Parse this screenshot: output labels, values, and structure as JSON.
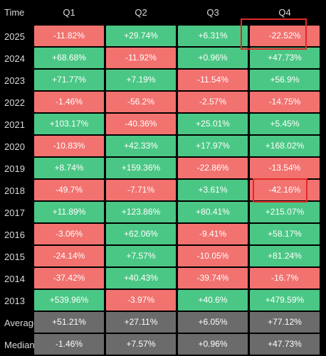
{
  "header": {
    "time": "Time",
    "q1": "Q1",
    "q2": "Q2",
    "q3": "Q3",
    "q4": "Q4"
  },
  "rows": [
    {
      "label": "2025",
      "q1": "-11.82%",
      "q2": "+29.74%",
      "q3": "+6.31%",
      "q4": "-22.52%"
    },
    {
      "label": "2024",
      "q1": "+68.68%",
      "q2": "-11.92%",
      "q3": "+0.96%",
      "q4": "+47.73%"
    },
    {
      "label": "2023",
      "q1": "+71.77%",
      "q2": "+7.19%",
      "q3": "-11.54%",
      "q4": "+56.9%"
    },
    {
      "label": "2022",
      "q1": "-1.46%",
      "q2": "-56.2%",
      "q3": "-2.57%",
      "q4": "-14.75%"
    },
    {
      "label": "2021",
      "q1": "+103.17%",
      "q2": "-40.36%",
      "q3": "+25.01%",
      "q4": "+5.45%"
    },
    {
      "label": "2020",
      "q1": "-10.83%",
      "q2": "+42.33%",
      "q3": "+17.97%",
      "q4": "+168.02%"
    },
    {
      "label": "2019",
      "q1": "+8.74%",
      "q2": "+159.36%",
      "q3": "-22.86%",
      "q4": "-13.54%"
    },
    {
      "label": "2018",
      "q1": "-49.7%",
      "q2": "-7.71%",
      "q3": "+3.61%",
      "q4": "-42.16%"
    },
    {
      "label": "2017",
      "q1": "+11.89%",
      "q2": "+123.86%",
      "q3": "+80.41%",
      "q4": "+215.07%"
    },
    {
      "label": "2016",
      "q1": "-3.06%",
      "q2": "+62.06%",
      "q3": "-9.41%",
      "q4": "+58.17%"
    },
    {
      "label": "2015",
      "q1": "-24.14%",
      "q2": "+7.57%",
      "q3": "-10.05%",
      "q4": "+81.24%"
    },
    {
      "label": "2014",
      "q1": "-37.42%",
      "q2": "+40.43%",
      "q3": "-39.74%",
      "q4": "-16.7%"
    },
    {
      "label": "2013",
      "q1": "+539.96%",
      "q2": "-3.97%",
      "q3": "+40.6%",
      "q4": "+479.59%"
    },
    {
      "label": "Average",
      "q1": "+51.21%",
      "q2": "+27.11%",
      "q3": "+6.05%",
      "q4": "+77.12%"
    },
    {
      "label": "Median",
      "q1": "-1.46%",
      "q2": "+7.57%",
      "q3": "+0.96%",
      "q4": "+47.73%"
    }
  ],
  "colors": {
    "positive": "#4bc785",
    "negative": "#f2726f",
    "summary": "#6b6b6b",
    "highlight": "#e0292a",
    "background": "#000000"
  }
}
